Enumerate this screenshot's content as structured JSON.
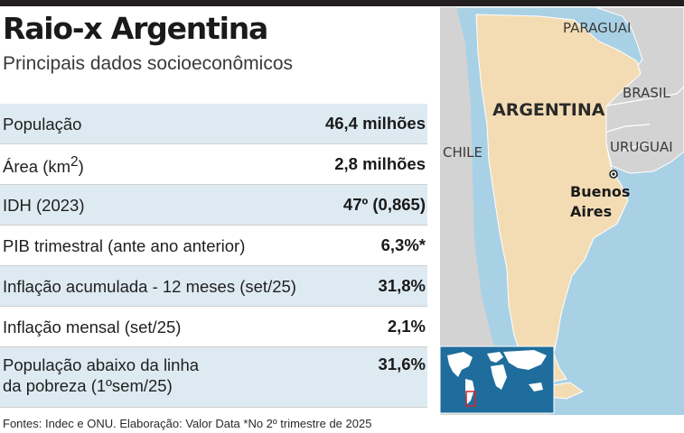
{
  "header": {
    "title": "Raio-x Argentina",
    "subtitle": "Principais dados socioeconômicos"
  },
  "table": {
    "rows": [
      {
        "label": "População",
        "value": "46,4 milhões"
      },
      {
        "label": "Área (km",
        "label_sup": "2",
        "label_after": ")",
        "value": "2,8 milhões"
      },
      {
        "label": "IDH (2023)",
        "value": "47º (0,865)"
      },
      {
        "label": "PIB trimestral (ante ano anterior)",
        "value": "6,3%*"
      },
      {
        "label": "Inflação acumulada - 12 meses (set/25)",
        "value": "31,8%"
      },
      {
        "label": "Inflação mensal (set/25)",
        "value": "2,1%"
      },
      {
        "label_line1": "População abaixo da linha",
        "label_line2": "da pobreza (1ºsem/25)",
        "value": "31,6%"
      }
    ]
  },
  "footer": {
    "source": "Fontes: Indec e ONU. Elaboração: Valor Data *No 2º trimestre de 2025"
  },
  "map": {
    "labels": {
      "paraguai": "PARAGUAI",
      "brasil": "BRASIL",
      "argentina": "ARGENTINA",
      "chile": "CHILE",
      "uruguai": "URUGUAI",
      "city_line1": "Buenos",
      "city_line2": "Aires"
    },
    "colors": {
      "argentina": "#f3dcb4",
      "neighbors": "#d3d3d3",
      "ocean": "#a9d1e6",
      "inset_ocean": "#1f6d9c",
      "inset_land": "#ffffff",
      "highlight": "#d02630"
    }
  }
}
